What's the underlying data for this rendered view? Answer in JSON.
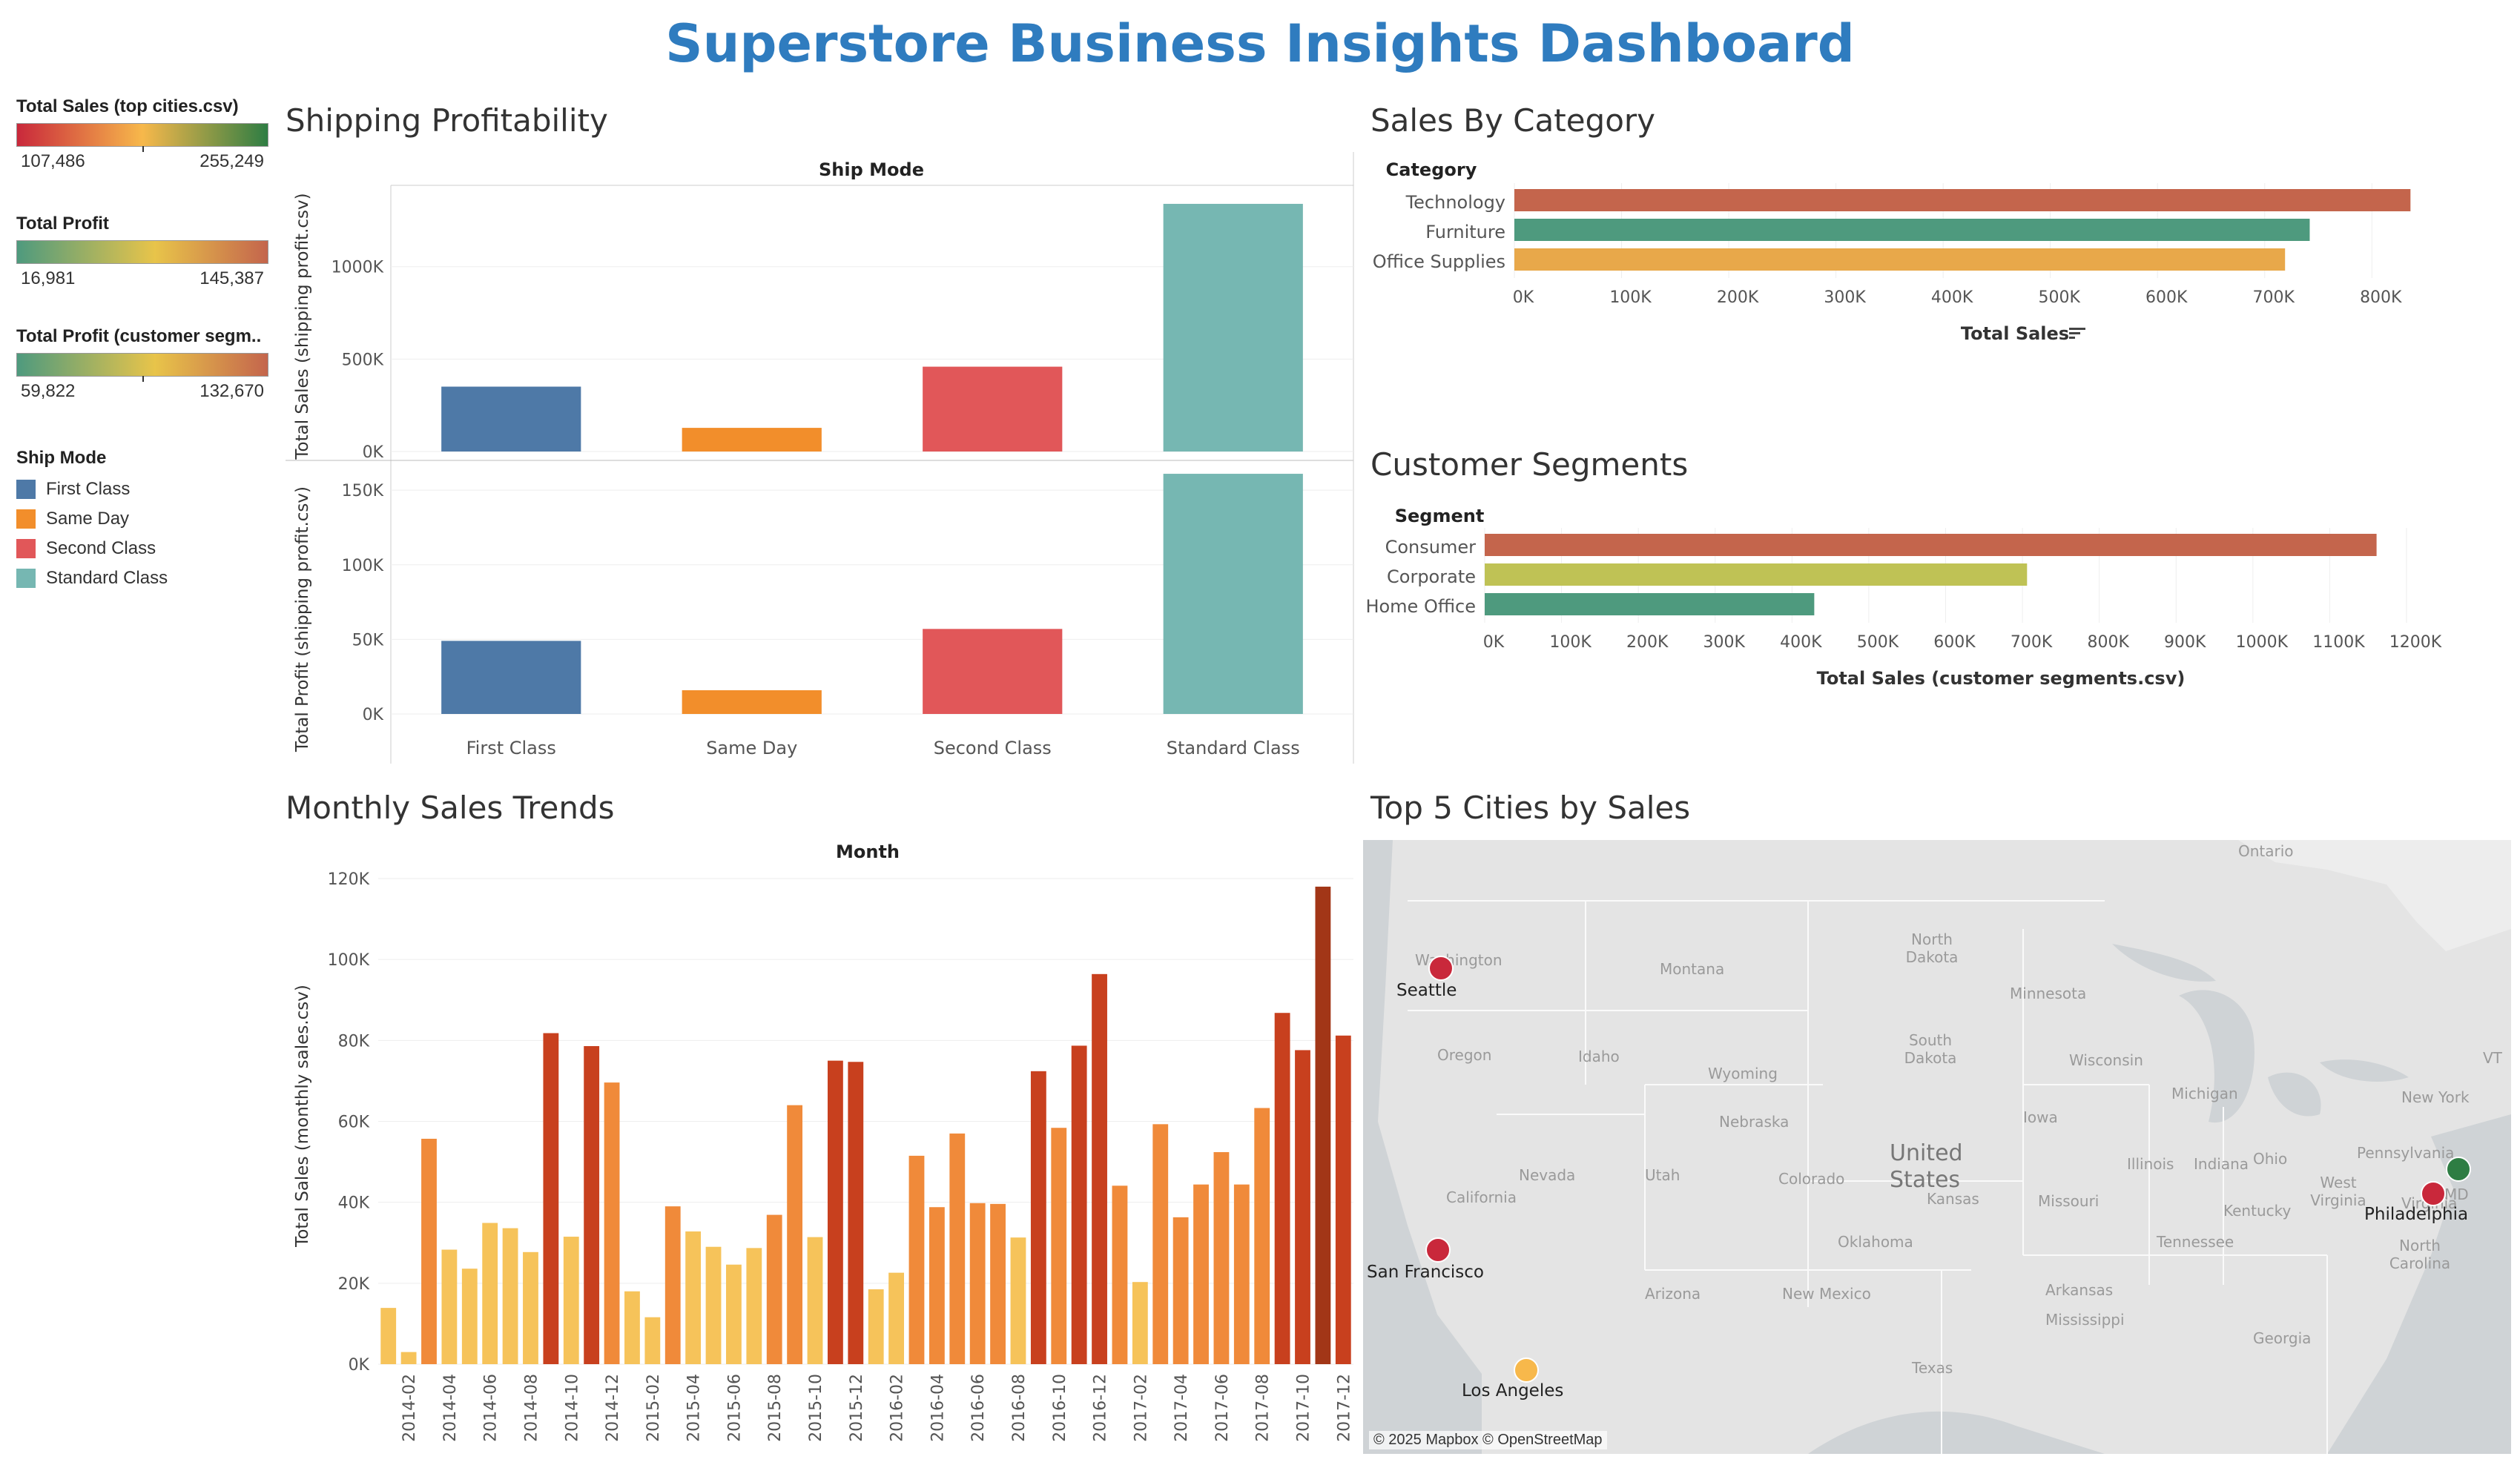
{
  "dashboard": {
    "title": "Superstore Business Insights Dashboard"
  },
  "legends": {
    "top_cities": {
      "title": "Total Sales (top cities.csv)",
      "min": "107,486",
      "max": "255,249"
    },
    "profit": {
      "title": "Total Profit",
      "min": "16,981",
      "max": "145,387"
    },
    "segments": {
      "title": "Total Profit (customer segm..",
      "min": "59,822",
      "max": "132,670"
    },
    "ship_mode": {
      "title": "Ship Mode",
      "items": [
        {
          "label": "First Class",
          "color": "#4e79a7"
        },
        {
          "label": "Same Day",
          "color": "#f28e2b"
        },
        {
          "label": "Second Class",
          "color": "#e15759"
        },
        {
          "label": "Standard Class",
          "color": "#76b7b2"
        }
      ]
    }
  },
  "sections": {
    "shipping": "Shipping Profitability",
    "category": "Sales By Category",
    "segments": "Customer Segments",
    "monthly": "Monthly Sales Trends",
    "cities": "Top 5 Cities by Sales"
  },
  "chart_data": [
    {
      "type": "bar",
      "title": "Shipping Profitability",
      "column_header": "Ship Mode",
      "categories": [
        "First Class",
        "Same Day",
        "Second Class",
        "Standard Class"
      ],
      "colors": [
        "#4e79a7",
        "#f28e2b",
        "#e15759",
        "#76b7b2"
      ],
      "series": [
        {
          "ylabel": "Total Sales (shipping profit.csv)",
          "values": [
            351000,
            128000,
            459000,
            1340000
          ],
          "ylim": [
            0,
            1400000
          ],
          "ticks": [
            0,
            500000,
            1000000
          ],
          "tick_labels": [
            "0K",
            "500K",
            "1000K"
          ]
        },
        {
          "ylabel": "Total Profit (shipping profit.csv)",
          "values": [
            49000,
            15900,
            57000,
            161000
          ],
          "ylim": [
            0,
            165000
          ],
          "ticks": [
            0,
            50000,
            100000,
            150000
          ],
          "tick_labels": [
            "0K",
            "50K",
            "100K",
            "150K"
          ]
        }
      ]
    },
    {
      "type": "bar",
      "orientation": "horizontal",
      "title": "Sales By Category",
      "row_header": "Category",
      "categories": [
        "Technology",
        "Furniture",
        "Office Supplies"
      ],
      "values": [
        836000,
        742000,
        719000
      ],
      "colors": [
        "#c4654c",
        "#4e9a7e",
        "#e8a84a"
      ],
      "xlabel": "Total Sales",
      "xlim": [
        0,
        860000
      ],
      "ticks": [
        0,
        100000,
        200000,
        300000,
        400000,
        500000,
        600000,
        700000,
        800000
      ],
      "tick_labels": [
        "0K",
        "100K",
        "200K",
        "300K",
        "400K",
        "500K",
        "600K",
        "700K",
        "800K"
      ]
    },
    {
      "type": "bar",
      "orientation": "horizontal",
      "title": "Customer Segments",
      "row_header": "Segment",
      "categories": [
        "Consumer",
        "Corporate",
        "Home Office"
      ],
      "values": [
        1161000,
        706000,
        429000
      ],
      "colors": [
        "#c4654c",
        "#bfc255",
        "#4e9a7e"
      ],
      "xlabel": "Total Sales (customer segments.csv)",
      "xlim": [
        0,
        1200000
      ],
      "ticks": [
        0,
        100000,
        200000,
        300000,
        400000,
        500000,
        600000,
        700000,
        800000,
        900000,
        1000000,
        1100000,
        1200000
      ],
      "tick_labels": [
        "0K",
        "100K",
        "200K",
        "300K",
        "400K",
        "500K",
        "600K",
        "700K",
        "800K",
        "900K",
        "1000K",
        "1100K",
        "1200K"
      ]
    },
    {
      "type": "bar",
      "title": "Monthly Sales Trends",
      "column_header": "Month",
      "ylabel": "Total Sales (monthly sales.csv)",
      "ylim": [
        0,
        120000
      ],
      "ticks": [
        0,
        20000,
        40000,
        60000,
        80000,
        100000,
        120000
      ],
      "tick_labels": [
        "0K",
        "20K",
        "40K",
        "60K",
        "80K",
        "100K",
        "120K"
      ],
      "x_tick_labels": [
        "2014-02",
        "2014-04",
        "2014-06",
        "2014-08",
        "2014-10",
        "2014-12",
        "2015-02",
        "2015-04",
        "2015-06",
        "2015-08",
        "2015-10",
        "2015-12",
        "2016-02",
        "2016-04",
        "2016-06",
        "2016-08",
        "2016-10",
        "2016-12",
        "2017-02",
        "2017-04",
        "2017-06",
        "2017-08",
        "2017-10",
        "2017-12"
      ],
      "values": [
        13900,
        3000,
        55700,
        28300,
        23600,
        34900,
        33600,
        27700,
        81800,
        31500,
        78600,
        69600,
        18000,
        11600,
        39000,
        32800,
        29000,
        24600,
        28700,
        36900,
        64000,
        31400,
        75000,
        74700,
        18500,
        22600,
        51500,
        38800,
        57000,
        39800,
        39600,
        31300,
        72400,
        58400,
        78700,
        96400,
        44100,
        20300,
        59300,
        36300,
        44400,
        52400,
        44400,
        63300,
        86800,
        77600,
        118000,
        81200
      ],
      "color_scale": [
        "#f6c35a",
        "#f08a3a",
        "#c8401e",
        "#a23617"
      ]
    }
  ],
  "map": {
    "title": "Top 5 Cities by Sales",
    "attribution": "© 2025 Mapbox © OpenStreetMap",
    "region_labels": [
      "Ontario",
      "North Dakota",
      "Montana",
      "Minnesota",
      "South Dakota",
      "Wisconsin",
      "Oregon",
      "Idaho",
      "Wyoming",
      "Michigan",
      "New York",
      "Iowa",
      "Pennsylvania",
      "Nebraska",
      "Illinois",
      "Indiana",
      "Ohio",
      "Nevada",
      "Utah",
      "Colorado",
      "Kansas",
      "Missouri",
      "Kentucky",
      "West Virginia",
      "Virginia",
      "Oklahoma",
      "Tennessee",
      "North Carolina",
      "Arizona",
      "New Mexico",
      "Arkansas",
      "Mississippi",
      "Georgia",
      "Texas",
      "United States",
      "California",
      "Washington",
      "VT",
      "MD"
    ],
    "cities": [
      {
        "name": "Seattle",
        "color": "#c9283b"
      },
      {
        "name": "San Francisco",
        "color": "#c9283b"
      },
      {
        "name": "Los Angeles",
        "color": "#f7b84b"
      },
      {
        "name": "Philadelphia",
        "color": "#c9283b"
      },
      {
        "name": "New York City",
        "color": "#2e7d43"
      }
    ]
  }
}
